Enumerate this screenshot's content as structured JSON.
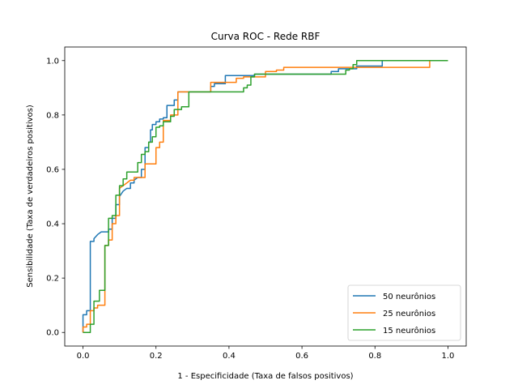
{
  "chart_data": {
    "type": "line",
    "title": "Curva ROC - Rede RBF",
    "xlabel": "1 - Especificidade (Taxa de falsos positivos)",
    "ylabel": "Sensibilidade (Taxa de verdadeiros positivos)",
    "xlim": [
      -0.05,
      1.05
    ],
    "ylim": [
      -0.05,
      1.05
    ],
    "xticks": [
      "0.0",
      "0.2",
      "0.4",
      "0.6",
      "0.8",
      "1.0"
    ],
    "yticks": [
      "0.0",
      "0.2",
      "0.4",
      "0.6",
      "0.8",
      "1.0"
    ],
    "grid": false,
    "legend_position": "lower-right",
    "series": [
      {
        "name": "50 neurônios",
        "color": "#1f77b4",
        "x": [
          0.0,
          0.0,
          0.01,
          0.01,
          0.02,
          0.02,
          0.03,
          0.03,
          0.04,
          0.05,
          0.06,
          0.07,
          0.07,
          0.08,
          0.08,
          0.09,
          0.09,
          0.1,
          0.1,
          0.11,
          0.12,
          0.13,
          0.13,
          0.14,
          0.14,
          0.15,
          0.16,
          0.16,
          0.17,
          0.17,
          0.18,
          0.18,
          0.185,
          0.185,
          0.19,
          0.19,
          0.2,
          0.2,
          0.21,
          0.21,
          0.22,
          0.22,
          0.23,
          0.23,
          0.25,
          0.25,
          0.26,
          0.26,
          0.35,
          0.35,
          0.36,
          0.36,
          0.39,
          0.39,
          0.47,
          0.47,
          0.68,
          0.68,
          0.7,
          0.7,
          0.75,
          0.75,
          0.82,
          0.82,
          1.0
        ],
        "y": [
          0.0,
          0.065,
          0.065,
          0.08,
          0.08,
          0.335,
          0.335,
          0.345,
          0.36,
          0.37,
          0.37,
          0.37,
          0.38,
          0.38,
          0.42,
          0.42,
          0.47,
          0.47,
          0.5,
          0.52,
          0.53,
          0.53,
          0.55,
          0.55,
          0.56,
          0.57,
          0.57,
          0.6,
          0.6,
          0.68,
          0.68,
          0.7,
          0.7,
          0.745,
          0.745,
          0.765,
          0.765,
          0.775,
          0.775,
          0.785,
          0.785,
          0.79,
          0.79,
          0.835,
          0.835,
          0.855,
          0.855,
          0.885,
          0.885,
          0.905,
          0.905,
          0.915,
          0.915,
          0.945,
          0.945,
          0.95,
          0.95,
          0.96,
          0.96,
          0.97,
          0.97,
          0.98,
          0.98,
          1.0,
          1.0
        ]
      },
      {
        "name": "25 neurônios",
        "color": "#ff7f0e",
        "x": [
          0.0,
          0.0,
          0.01,
          0.01,
          0.02,
          0.02,
          0.03,
          0.03,
          0.04,
          0.04,
          0.05,
          0.05,
          0.06,
          0.06,
          0.07,
          0.07,
          0.08,
          0.08,
          0.09,
          0.09,
          0.1,
          0.1,
          0.12,
          0.13,
          0.14,
          0.14,
          0.17,
          0.17,
          0.18,
          0.18,
          0.2,
          0.2,
          0.21,
          0.21,
          0.22,
          0.22,
          0.24,
          0.24,
          0.26,
          0.26,
          0.3,
          0.3,
          0.35,
          0.35,
          0.42,
          0.42,
          0.44,
          0.44,
          0.5,
          0.5,
          0.53,
          0.53,
          0.55,
          0.55,
          0.93,
          0.93,
          0.95,
          0.95,
          1.0
        ],
        "y": [
          0.0,
          0.02,
          0.02,
          0.03,
          0.03,
          0.08,
          0.08,
          0.09,
          0.09,
          0.1,
          0.1,
          0.1,
          0.1,
          0.32,
          0.32,
          0.34,
          0.34,
          0.4,
          0.4,
          0.43,
          0.43,
          0.53,
          0.55,
          0.56,
          0.56,
          0.57,
          0.57,
          0.62,
          0.62,
          0.62,
          0.62,
          0.68,
          0.68,
          0.7,
          0.7,
          0.78,
          0.78,
          0.8,
          0.8,
          0.885,
          0.885,
          0.885,
          0.885,
          0.92,
          0.92,
          0.935,
          0.935,
          0.94,
          0.94,
          0.96,
          0.96,
          0.965,
          0.965,
          0.975,
          0.975,
          0.975,
          0.975,
          1.0,
          1.0
        ]
      },
      {
        "name": "15 neurônios",
        "color": "#2ca02c",
        "x": [
          0.0,
          0.0,
          0.02,
          0.02,
          0.03,
          0.03,
          0.045,
          0.045,
          0.05,
          0.05,
          0.06,
          0.06,
          0.07,
          0.07,
          0.08,
          0.08,
          0.09,
          0.09,
          0.1,
          0.1,
          0.11,
          0.11,
          0.12,
          0.12,
          0.13,
          0.13,
          0.15,
          0.15,
          0.16,
          0.16,
          0.17,
          0.17,
          0.18,
          0.18,
          0.19,
          0.19,
          0.2,
          0.2,
          0.21,
          0.21,
          0.22,
          0.22,
          0.24,
          0.24,
          0.25,
          0.25,
          0.27,
          0.27,
          0.29,
          0.29,
          0.44,
          0.44,
          0.45,
          0.45,
          0.46,
          0.46,
          0.47,
          0.47,
          0.72,
          0.72,
          0.73,
          0.73,
          0.74,
          0.74,
          0.75,
          0.75,
          1.0
        ],
        "y": [
          0.0,
          0.0,
          0.0,
          0.03,
          0.03,
          0.115,
          0.115,
          0.155,
          0.155,
          0.155,
          0.155,
          0.32,
          0.32,
          0.42,
          0.42,
          0.43,
          0.43,
          0.505,
          0.505,
          0.54,
          0.54,
          0.565,
          0.565,
          0.59,
          0.59,
          0.59,
          0.59,
          0.625,
          0.625,
          0.655,
          0.655,
          0.665,
          0.665,
          0.7,
          0.7,
          0.72,
          0.72,
          0.755,
          0.755,
          0.76,
          0.76,
          0.775,
          0.775,
          0.795,
          0.795,
          0.82,
          0.82,
          0.83,
          0.83,
          0.885,
          0.885,
          0.9,
          0.9,
          0.91,
          0.91,
          0.94,
          0.94,
          0.95,
          0.95,
          0.965,
          0.965,
          0.97,
          0.97,
          0.985,
          0.985,
          1.0,
          1.0
        ]
      }
    ]
  }
}
